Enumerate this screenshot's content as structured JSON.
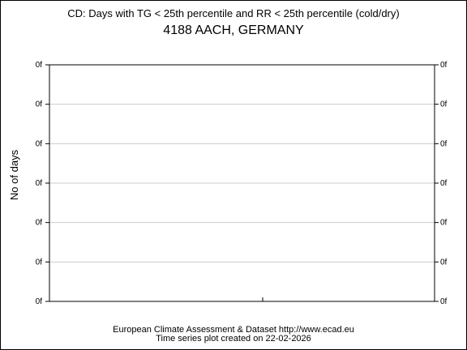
{
  "chart_data": {
    "type": "line",
    "title": "CD: Days with TG < 25th percentile and RR < 25th percentile (cold/dry)",
    "subtitle": "4188 AACH, GERMANY",
    "xlabel": "",
    "ylabel": "No of days",
    "y_tick_labels": [
      "0f",
      "0f",
      "0f",
      "0f",
      "0f",
      "0f",
      "0f"
    ],
    "y_ticks_right": true,
    "grid": true,
    "series": []
  },
  "footer": {
    "line1": "European Climate Assessment & Dataset  http://www.ecad.eu",
    "line2": "Time series plot created on 22-02-2026"
  },
  "colors": {
    "grid": "#cccccc",
    "axis": "#000000",
    "background": "#ffffff"
  }
}
